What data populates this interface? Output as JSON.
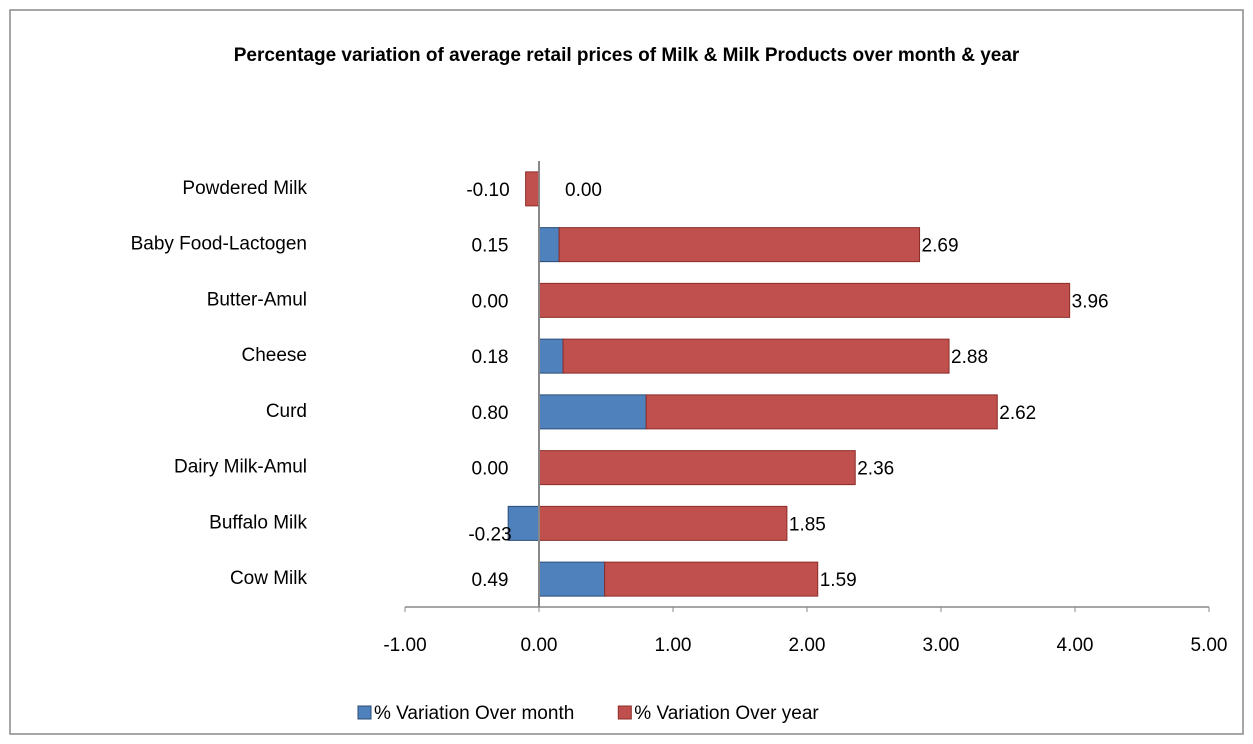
{
  "chart_data": {
    "type": "stacked_bar_horizontal",
    "title": "Percentage variation  of average retail prices of Milk & Milk Products  over month & year",
    "categories": [
      "Cow Milk",
      "Buffalo Milk",
      "Dairy Milk-Amul",
      "Curd",
      "Cheese",
      "Butter-Amul",
      "Baby Food-Lactogen",
      "Powdered Milk"
    ],
    "series": [
      {
        "name": "% Variation Over month",
        "color": "#4f81bd",
        "values": [
          0.49,
          -0.23,
          0,
          0.8,
          0.18,
          0,
          0.15,
          0
        ],
        "value_labels": [
          "0.49",
          "-0.23",
          "0.00",
          "0.80",
          "0.18",
          "0.00",
          "0.15",
          "0.00"
        ]
      },
      {
        "name": "% Variation Over year",
        "color": "#c0504d",
        "values": [
          1.59,
          1.85,
          2.36,
          2.62,
          2.88,
          3.96,
          2.69,
          -0.1
        ],
        "value_labels": [
          "1.59",
          "1.85",
          "2.36",
          "2.62",
          "2.88",
          "3.96",
          "2.69",
          "-0.10"
        ]
      }
    ],
    "xlim": [
      -1,
      5
    ],
    "xticks": [
      {
        "value": -1,
        "label": "-1.00"
      },
      {
        "value": 0,
        "label": "0.00"
      },
      {
        "value": 1,
        "label": "1.00"
      },
      {
        "value": 2,
        "label": "2.00"
      },
      {
        "value": 3,
        "label": "3.00"
      },
      {
        "value": 4,
        "label": "4.00"
      },
      {
        "value": 5,
        "label": "5.00"
      }
    ],
    "grid": false,
    "legend": "bottom"
  }
}
